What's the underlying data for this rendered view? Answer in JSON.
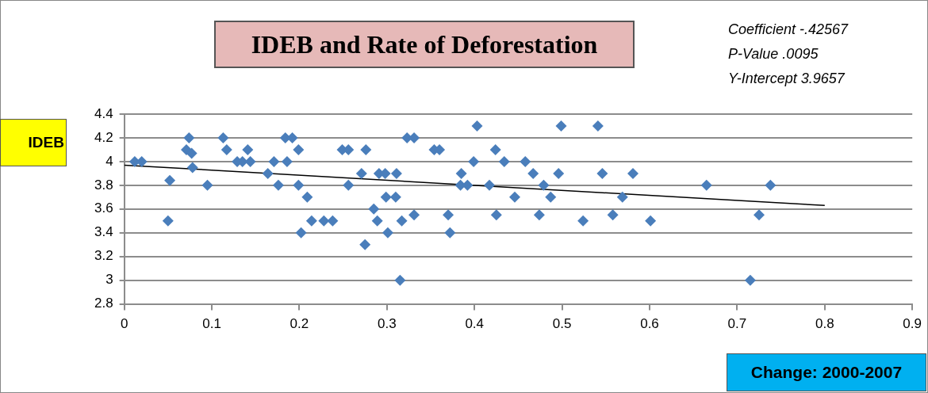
{
  "chart_data": {
    "type": "scatter",
    "title": "IDEB and Rate of Deforestation",
    "xlabel": "Change: 2000-2007",
    "ylabel": "IDEB",
    "annotations": [
      "Coefficient -.42567",
      "P-Value .0095",
      "Y-Intercept 3.9657"
    ],
    "xlim": [
      0,
      0.9
    ],
    "xticks": [
      0,
      0.1,
      0.2,
      0.3,
      0.4,
      0.5,
      0.6,
      0.7,
      0.8,
      0.9
    ],
    "ylim": [
      2.8,
      4.4
    ],
    "yticks": [
      2.8,
      3,
      3.2,
      3.4,
      3.6,
      3.8,
      4,
      4.2,
      4.4
    ],
    "grid": "y",
    "legend": false,
    "marker": "diamond",
    "series": [
      {
        "color": "#4a7ebb",
        "x": [
          0.012,
          0.02,
          0.052,
          0.05,
          0.074,
          0.071,
          0.077,
          0.078,
          0.095,
          0.113,
          0.117,
          0.129,
          0.135,
          0.141,
          0.144,
          0.164,
          0.171,
          0.176,
          0.184,
          0.186,
          0.192,
          0.199,
          0.199,
          0.202,
          0.209,
          0.214,
          0.228,
          0.238,
          0.249,
          0.256,
          0.256,
          0.271,
          0.276,
          0.275,
          0.285,
          0.289,
          0.291,
          0.298,
          0.299,
          0.301,
          0.311,
          0.31,
          0.315,
          0.317,
          0.323,
          0.331,
          0.331,
          0.354,
          0.36,
          0.403,
          0.399,
          0.385,
          0.384,
          0.392,
          0.37,
          0.372,
          0.424,
          0.434,
          0.417,
          0.425,
          0.446,
          0.458,
          0.467,
          0.479,
          0.487,
          0.474,
          0.499,
          0.496,
          0.524,
          0.541,
          0.546,
          0.558,
          0.569,
          0.581,
          0.601,
          0.665,
          0.738,
          0.725,
          0.715
        ],
        "values": [
          4,
          4,
          3.84,
          3.5,
          4.2,
          4.1,
          4.07,
          3.95,
          3.8,
          4.2,
          4.1,
          4,
          4,
          4.1,
          4,
          3.9,
          4,
          3.8,
          4.2,
          4,
          4.2,
          4.1,
          3.8,
          3.4,
          3.7,
          3.5,
          3.5,
          3.5,
          4.1,
          4.1,
          3.8,
          3.9,
          4.1,
          3.3,
          3.6,
          3.5,
          3.9,
          3.9,
          3.7,
          3.4,
          3.9,
          3.7,
          3,
          3.5,
          4.2,
          4.2,
          3.55,
          4.1,
          4.1,
          4.3,
          4,
          3.9,
          3.8,
          3.8,
          3.55,
          3.4,
          4.1,
          4,
          3.8,
          3.55,
          3.7,
          4,
          3.9,
          3.8,
          3.7,
          3.55,
          4.3,
          3.9,
          3.5,
          4.3,
          3.9,
          3.55,
          3.7,
          3.9,
          3.5,
          3.8,
          3.8,
          3.55,
          3
        ]
      },
      {
        "type": "line",
        "color": "#000000",
        "marker": "none",
        "x": [
          0,
          0.8
        ],
        "values": [
          3.97,
          3.63
        ]
      }
    ]
  }
}
